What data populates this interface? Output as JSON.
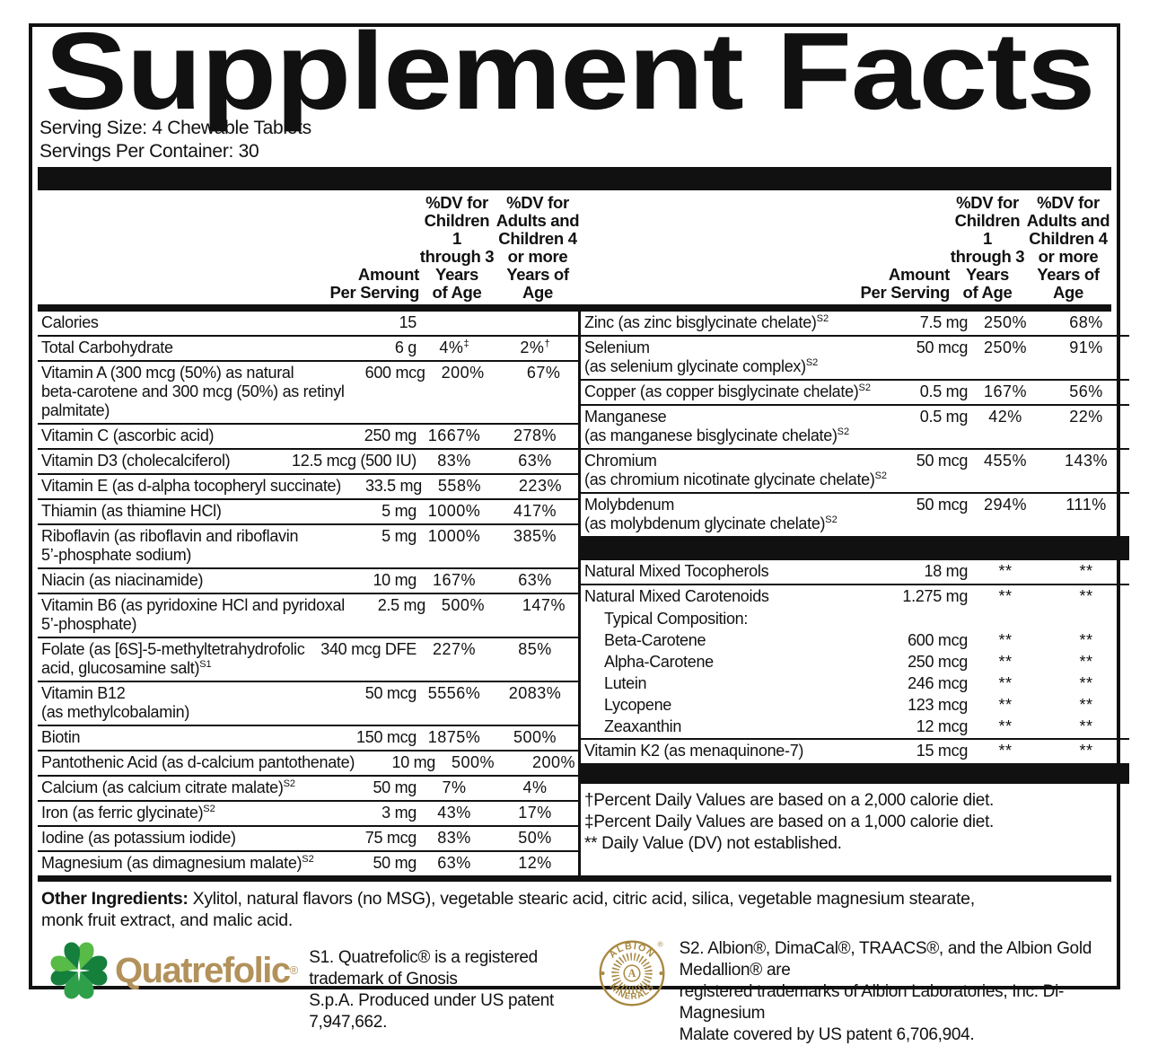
{
  "title": "Supplement Facts",
  "serving": {
    "size": "Serving Size: 4 Chewable Tablets",
    "per_container": "Servings Per Container: 30"
  },
  "table": {
    "headers": {
      "amount": "Amount\nPer Serving",
      "dv_children": "%DV for\nChildren 1\nthrough 3\nYears\nof Age",
      "dv_adults": "%DV for\nAdults and\nChildren 4\nor more\nYears of Age"
    },
    "left_rows": [
      {
        "name": "Calories",
        "amount": "15",
        "dv1": "",
        "dv2": "",
        "divider": true
      },
      {
        "name": "Total Carbohydrate",
        "amount": "6 g",
        "dv1": "4%",
        "dv1_sup": "‡",
        "dv2": "2%",
        "dv2_sup": "†",
        "divider": true
      },
      {
        "name": "Vitamin A (300 mcg (50%) as natural\nbeta-carotene and 300 mcg (50%) as retinyl\npalmitate)",
        "amount": "600 mcg",
        "dv1": "200%",
        "dv2": "67%",
        "divider": true
      },
      {
        "name": "Vitamin C (ascorbic acid)",
        "amount": "250 mg",
        "dv1": "1667%",
        "dv2": "278%",
        "divider": true
      },
      {
        "name": "Vitamin D3 (cholecalciferol)",
        "amount": "12.5 mcg (500 IU)",
        "dv1": "83%",
        "dv2": "63%",
        "divider": true
      },
      {
        "name": "Vitamin E (as d-alpha tocopheryl succinate)",
        "amount": "33.5 mg",
        "dv1": "558%",
        "dv2": "223%",
        "divider": true
      },
      {
        "name": "Thiamin (as thiamine HCl)",
        "amount": "5 mg",
        "dv1": "1000%",
        "dv2": "417%",
        "divider": true
      },
      {
        "name": "Riboflavin (as riboflavin and riboflavin\n5’-phosphate sodium)",
        "amount": "5 mg",
        "dv1": "1000%",
        "dv2": "385%",
        "divider": true
      },
      {
        "name": "Niacin (as niacinamide)",
        "amount": "10 mg",
        "dv1": "167%",
        "dv2": "63%",
        "divider": true
      },
      {
        "name": "Vitamin B6 (as pyridoxine HCl and pyridoxal\n5’-phosphate)",
        "amount": "2.5 mg",
        "dv1": "500%",
        "dv2": "147%",
        "divider": true
      },
      {
        "name": "Folate (as [6S]-5-methyltetrahydrofolic\nacid, glucosamine salt)",
        "sup": "S1",
        "amount": "340 mcg DFE",
        "dv1": "227%",
        "dv2": "85%",
        "divider": true
      },
      {
        "name": "Vitamin B12\n(as methylcobalamin)",
        "amount": "50 mcg",
        "dv1": "5556%",
        "dv2": "2083%",
        "divider": true
      },
      {
        "name": "Biotin",
        "amount": "150 mcg",
        "dv1": "1875%",
        "dv2": "500%",
        "divider": true
      },
      {
        "name": "Pantothenic Acid (as d-calcium pantothenate)",
        "amount": "10 mg",
        "dv1": "500%",
        "dv2": "200%",
        "divider": true
      },
      {
        "name": "Calcium (as calcium citrate malate)",
        "sup": "S2",
        "amount": "50 mg",
        "dv1": "7%",
        "dv2": "4%",
        "divider": true
      },
      {
        "name": "Iron (as ferric glycinate)",
        "sup": "S2",
        "amount": "3 mg",
        "dv1": "43%",
        "dv2": "17%",
        "divider": true
      },
      {
        "name": "Iodine (as potassium iodide)",
        "amount": "75 mcg",
        "dv1": "83%",
        "dv2": "50%",
        "divider": true
      },
      {
        "name": "Magnesium (as dimagnesium malate)",
        "sup": "S2",
        "amount": "50 mg",
        "dv1": "63%",
        "dv2": "12%",
        "divider": false
      }
    ],
    "right_rows": [
      {
        "name": "Zinc (as zinc bisglycinate chelate)",
        "sup": "S2",
        "amount": "7.5 mg",
        "dv1": "250%",
        "dv2": "68%",
        "divider": true
      },
      {
        "name": "Selenium\n(as selenium glycinate complex)",
        "sup": "S2",
        "amount": "50 mcg",
        "dv1": "250%",
        "dv2": "91%",
        "divider": true
      },
      {
        "name": "Copper (as copper bisglycinate chelate)",
        "sup": "S2",
        "amount": "0.5 mg",
        "dv1": "167%",
        "dv2": "56%",
        "divider": true
      },
      {
        "name": "Manganese\n(as manganese bisglycinate chelate)",
        "sup": "S2",
        "amount": "0.5 mg",
        "dv1": "42%",
        "dv2": "22%",
        "divider": true
      },
      {
        "name": "Chromium\n(as chromium nicotinate glycinate chelate)",
        "sup": "S2",
        "amount": "50 mcg",
        "dv1": "455%",
        "dv2": "143%",
        "divider": true
      },
      {
        "name": "Molybdenum\n(as molybdenum glycinate chelate)",
        "sup": "S2",
        "amount": "50 mcg",
        "dv1": "294%",
        "dv2": "111%",
        "divider": false
      },
      {
        "type": "bar",
        "height": 27
      },
      {
        "name": "Natural Mixed Tocopherols",
        "amount": "18 mg",
        "dv1": "**",
        "dv2": "**",
        "divider": true
      },
      {
        "name": "Natural Mixed Carotenoids",
        "amount": "1.275 mg",
        "dv1": "**",
        "dv2": "**",
        "divider": false
      },
      {
        "name": "Typical Composition:",
        "amount": "",
        "dv1": "",
        "dv2": "",
        "divider": false,
        "indent": true,
        "sub": true
      },
      {
        "name": "Beta-Carotene",
        "amount": "600 mcg",
        "dv1": "**",
        "dv2": "**",
        "divider": false,
        "indent": true,
        "sub": true
      },
      {
        "name": "Alpha-Carotene",
        "amount": "250 mcg",
        "dv1": "**",
        "dv2": "**",
        "divider": false,
        "indent": true,
        "sub": true
      },
      {
        "name": "Lutein",
        "amount": "246 mcg",
        "dv1": "**",
        "dv2": "**",
        "divider": false,
        "indent": true,
        "sub": true
      },
      {
        "name": "Lycopene",
        "amount": "123 mcg",
        "dv1": "**",
        "dv2": "**",
        "divider": false,
        "indent": true,
        "sub": true
      },
      {
        "name": "Zeaxanthin",
        "amount": "12 mcg",
        "dv1": "**",
        "dv2": "**",
        "divider": true,
        "indent": true,
        "sub": true
      },
      {
        "name": "Vitamin K2 (as menaquinone-7)",
        "amount": "15 mcg",
        "dv1": "**",
        "dv2": "**",
        "divider": false
      },
      {
        "type": "bar",
        "height": 23
      },
      {
        "type": "footnotes",
        "lines": [
          "†Percent Daily Values are based on a 2,000 calorie diet.",
          "‡Percent Daily Values are based on a 1,000 calorie diet.",
          "** Daily Value (DV) not established."
        ]
      }
    ]
  },
  "other_ingredients": {
    "label": "Other Ingredients:",
    "text": "Xylitol, natural flavors (no MSG), vegetable stearic acid, citric acid, silica, vegetable magnesium stearate,\nmonk fruit extract, and malic acid."
  },
  "trademarks": {
    "quatrefolic": {
      "wordmark": "Quatrefolic",
      "reg": "®",
      "note": "S1. Quatrefolic® is a registered trademark of Gnosis\nS.p.A. Produced under US patent 7,947,662."
    },
    "albion": {
      "arc_top": "ALBION",
      "arc_bottom": "MINERALS",
      "center": "A",
      "reg": "®",
      "note": "S2. Albion®, DimaCal®, TRAACS®, and the Albion Gold Medallion® are\nregistered trademarks of Albion Laboratories, Inc.  Di-Magnesium\nMalate covered by US patent 6,706,904."
    }
  },
  "colors": {
    "ink": "#111111",
    "quatrefolic_green_light": "#58ba47",
    "quatrefolic_green_mid": "#2fa04a",
    "quatrefolic_green_dark": "#157f3c",
    "quatrefolic_text": "#b2915a",
    "albion_gold": "#a8873f"
  }
}
